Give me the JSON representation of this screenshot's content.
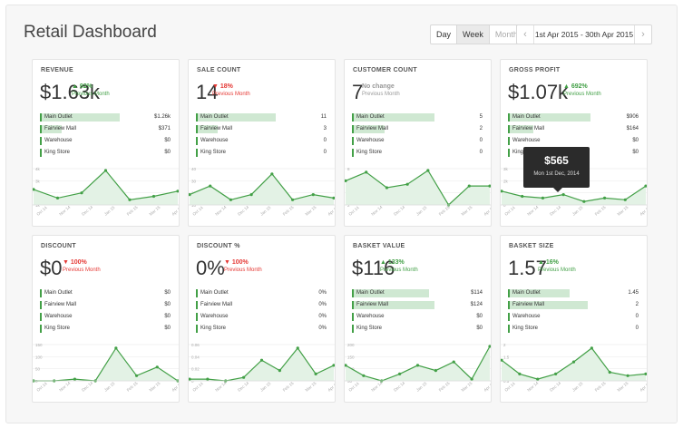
{
  "header": {
    "title": "Retail Dashboard",
    "periods": [
      "Day",
      "Week",
      "Month"
    ],
    "active_period": "Week",
    "date_range": "1st Apr 2015 - 30th Apr 2015",
    "prev_label": "‹",
    "next_label": "›"
  },
  "colors": {
    "accent": "#43a047",
    "up": "#43a047",
    "down": "#e53935",
    "bar": "#cfe8d2"
  },
  "x_labels": [
    "Oct 14",
    "Nov 14",
    "Dec 14",
    "Jan 15",
    "Feb 15",
    "Mar 15",
    "Apr 15"
  ],
  "cards": [
    {
      "title": "REVENUE",
      "value": "$1.63k",
      "change": "▲ 92%",
      "change_label": "Previous Month",
      "trend": "up",
      "rows": [
        {
          "name": "Main Outlet",
          "value": "$1.26k",
          "bar": 0.8
        },
        {
          "name": "Fairview Mall",
          "value": "$371",
          "bar": 0.22
        },
        {
          "name": "Warehouse",
          "value": "$0",
          "bar": 0
        },
        {
          "name": "King Store",
          "value": "$0",
          "bar": 0
        }
      ],
      "y_ticks": [
        "4k",
        "3k",
        "2k",
        "1k"
      ],
      "series": [
        0.45,
        0.2,
        0.35,
        1.0,
        0.15,
        0.25,
        0.4
      ]
    },
    {
      "title": "SALE COUNT",
      "value": "14",
      "change": "▼ 18%",
      "change_label": "Previous Month",
      "trend": "down",
      "rows": [
        {
          "name": "Main Outlet",
          "value": "11",
          "bar": 0.8
        },
        {
          "name": "Fairview Mall",
          "value": "3",
          "bar": 0.22
        },
        {
          "name": "Warehouse",
          "value": "0",
          "bar": 0
        },
        {
          "name": "King Store",
          "value": "0",
          "bar": 0
        }
      ],
      "y_ticks": [
        "40",
        "30",
        "20",
        "10"
      ],
      "series": [
        0.3,
        0.55,
        0.15,
        0.3,
        0.9,
        0.15,
        0.3,
        0.2
      ]
    },
    {
      "title": "CUSTOMER COUNT",
      "value": "7",
      "change": "No change",
      "change_label": "Previous Month",
      "trend": "neutral",
      "rows": [
        {
          "name": "Main Outlet",
          "value": "5",
          "bar": 0.83
        },
        {
          "name": "Fairview Mall",
          "value": "2",
          "bar": 0.33
        },
        {
          "name": "Warehouse",
          "value": "0",
          "bar": 0
        },
        {
          "name": "King Store",
          "value": "0",
          "bar": 0
        }
      ],
      "y_ticks": [
        "8",
        "6",
        "4",
        "2"
      ],
      "series": [
        0.7,
        0.95,
        0.5,
        0.6,
        1.0,
        0.0,
        0.55,
        0.55
      ]
    },
    {
      "title": "GROSS PROFIT",
      "value": "$1.07k",
      "change": "▲ 692%",
      "change_label": "Previous Month",
      "trend": "up",
      "rows": [
        {
          "name": "Main Outlet",
          "value": "$906",
          "bar": 0.83
        },
        {
          "name": "Fairview Mall",
          "value": "$164",
          "bar": 0.25
        },
        {
          "name": "Warehouse",
          "value": "$0",
          "bar": 0
        },
        {
          "name": "King Store",
          "value": "$0",
          "bar": 0
        }
      ],
      "y_ticks": [
        "3k",
        "2k",
        "1k",
        "0"
      ],
      "series": [
        0.4,
        0.25,
        0.2,
        0.3,
        0.1,
        0.2,
        0.15,
        0.55
      ],
      "tooltip": {
        "value": "$565",
        "date": "Mon 1st Dec, 2014"
      }
    },
    {
      "title": "DISCOUNT",
      "value": "$0",
      "change": "▼ 100%",
      "change_label": "Previous Month",
      "trend": "down",
      "rows": [
        {
          "name": "Main Outlet",
          "value": "$0",
          "bar": 0
        },
        {
          "name": "Fairview Mall",
          "value": "$0",
          "bar": 0
        },
        {
          "name": "Warehouse",
          "value": "$0",
          "bar": 0
        },
        {
          "name": "King Store",
          "value": "$0",
          "bar": 0
        }
      ],
      "y_ticks": [
        "150",
        "100",
        "50",
        "0"
      ],
      "series": [
        0.0,
        0.0,
        0.05,
        0.0,
        0.95,
        0.15,
        0.4,
        0.0
      ]
    },
    {
      "title": "DISCOUNT %",
      "value": "0%",
      "change": "▼ 100%",
      "change_label": "Previous Month",
      "trend": "down",
      "rows": [
        {
          "name": "Main Outlet",
          "value": "0%",
          "bar": 0
        },
        {
          "name": "Fairview Mall",
          "value": "0%",
          "bar": 0
        },
        {
          "name": "Warehouse",
          "value": "0%",
          "bar": 0
        },
        {
          "name": "King Store",
          "value": "0%",
          "bar": 0
        }
      ],
      "y_ticks": [
        "0.06",
        "0.04",
        "0.02",
        "0"
      ],
      "series": [
        0.05,
        0.05,
        0.0,
        0.1,
        0.6,
        0.3,
        0.95,
        0.2,
        0.45
      ]
    },
    {
      "title": "BASKET VALUE",
      "value": "$116",
      "change": "▲ 133%",
      "change_label": "Previous Month",
      "trend": "up",
      "rows": [
        {
          "name": "Main Outlet",
          "value": "$114",
          "bar": 0.77
        },
        {
          "name": "Fairview Mall",
          "value": "$124",
          "bar": 0.83
        },
        {
          "name": "Warehouse",
          "value": "$0",
          "bar": 0
        },
        {
          "name": "King Store",
          "value": "$0",
          "bar": 0
        }
      ],
      "y_ticks": [
        "200",
        "150",
        "100",
        "50"
      ],
      "series": [
        0.45,
        0.15,
        0.0,
        0.2,
        0.45,
        0.3,
        0.55,
        0.05,
        1.0
      ]
    },
    {
      "title": "BASKET SIZE",
      "value": "1.57",
      "change": "▲ 16%",
      "change_label": "Previous Month",
      "trend": "up",
      "rows": [
        {
          "name": "Main Outlet",
          "value": "1.45",
          "bar": 0.62
        },
        {
          "name": "Fairview Mall",
          "value": "2",
          "bar": 0.8
        },
        {
          "name": "Warehouse",
          "value": "0",
          "bar": 0
        },
        {
          "name": "King Store",
          "value": "0",
          "bar": 0
        }
      ],
      "y_ticks": [
        "2",
        "1.5",
        "1",
        "0.5"
      ],
      "series": [
        0.6,
        0.2,
        0.05,
        0.2,
        0.55,
        0.95,
        0.25,
        0.15,
        0.2
      ]
    }
  ]
}
